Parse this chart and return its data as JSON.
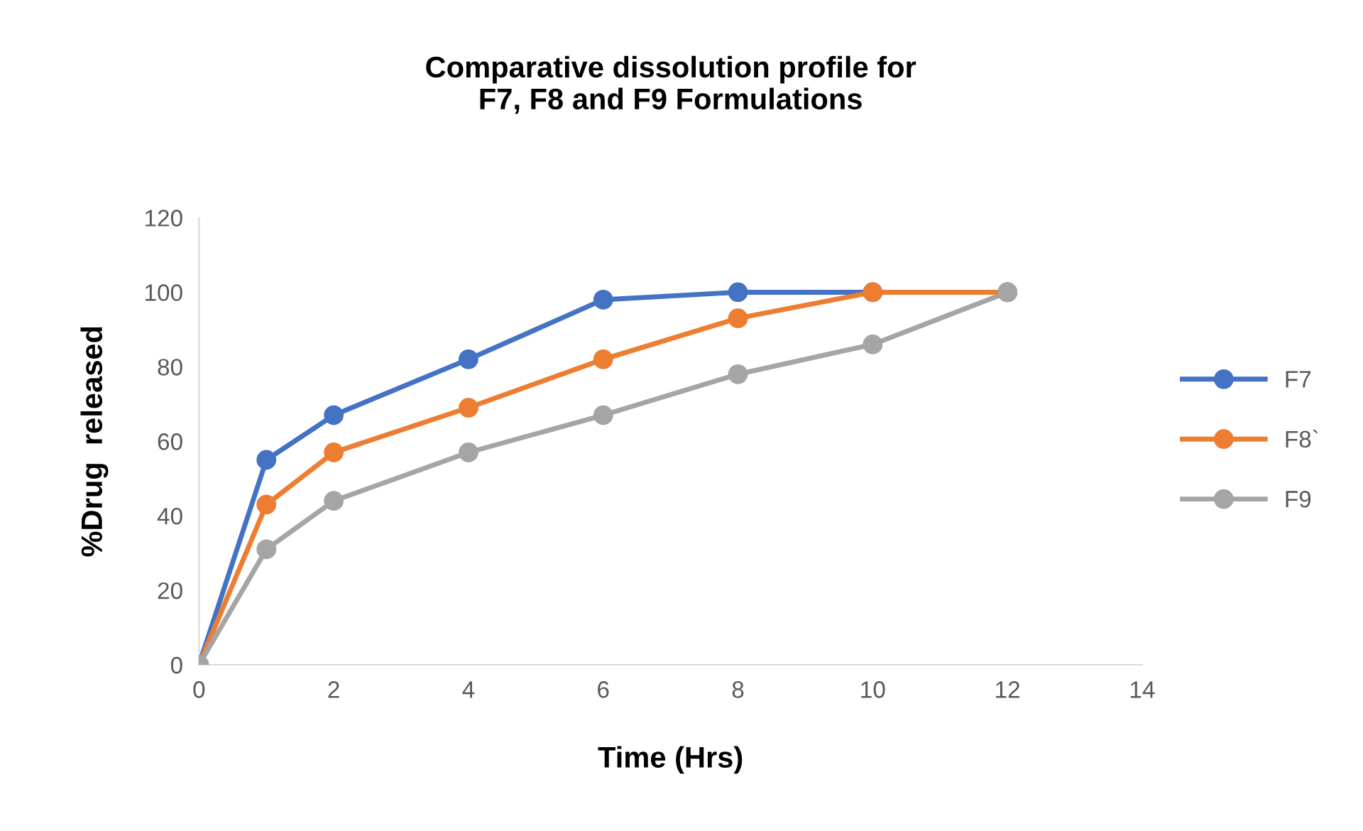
{
  "chart_data": {
    "type": "line",
    "title": "Comparative dissolution profile for\nF7, F8 and F9 Formulations",
    "xlabel": "Time (Hrs)",
    "ylabel": "%Drug  released",
    "x": [
      0,
      1,
      2,
      4,
      6,
      8,
      10,
      12
    ],
    "series": [
      {
        "name": "F7",
        "color": "#4472c4",
        "values": [
          0,
          55,
          67,
          82,
          98,
          100,
          100,
          100
        ]
      },
      {
        "name": "F8`",
        "color": "#ed7d31",
        "values": [
          0,
          43,
          57,
          69,
          82,
          93,
          100,
          100
        ]
      },
      {
        "name": "F9",
        "color": "#a5a5a5",
        "values": [
          0,
          31,
          44,
          57,
          67,
          78,
          86,
          100
        ]
      }
    ],
    "xlim": [
      0,
      14
    ],
    "xticks": [
      0,
      2,
      4,
      6,
      8,
      10,
      12,
      14
    ],
    "ylim": [
      0,
      120
    ],
    "yticks": [
      0,
      20,
      40,
      60,
      80,
      100,
      120
    ],
    "grid": false,
    "legend": "right",
    "marker": "circle",
    "line_style": "solid"
  }
}
